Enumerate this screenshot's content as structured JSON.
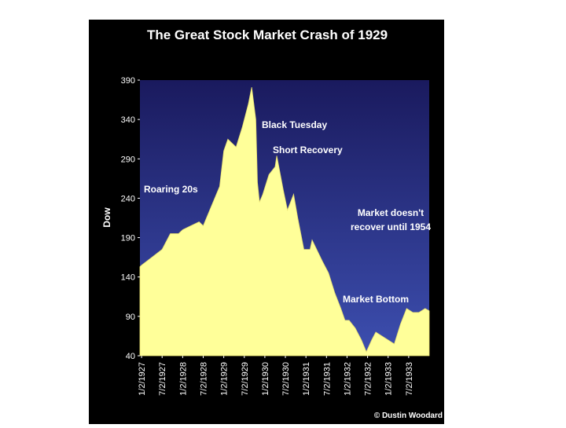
{
  "chart_data": {
    "type": "area",
    "title": "The Great Stock Market Crash of 1929",
    "y_label": "Dow",
    "annotations": {
      "black_tuesday": "Black Tuesday",
      "short_recovery": "Short Recovery",
      "roaring": "Roaring 20s",
      "recover_1": "Market doesn't",
      "recover_2": "recover until 1954",
      "bottom": "Market Bottom"
    },
    "credit": "© Dustin Woodard",
    "color": "#ffff99",
    "x": [
      1926.96,
      1927.0,
      1927.25,
      1927.5,
      1927.7,
      1927.9,
      1928.0,
      1928.2,
      1928.4,
      1928.5,
      1928.7,
      1928.9,
      1929.0,
      1929.1,
      1929.3,
      1929.45,
      1929.6,
      1929.68,
      1929.78,
      1929.82,
      1929.87,
      1929.95,
      1930.1,
      1930.25,
      1930.29,
      1930.45,
      1930.55,
      1930.7,
      1930.8,
      1930.95,
      1931.1,
      1931.15,
      1931.4,
      1931.55,
      1931.7,
      1931.85,
      1931.95,
      1932.05,
      1932.2,
      1932.35,
      1932.47,
      1932.6,
      1932.7,
      1932.85,
      1933.0,
      1933.15,
      1933.3,
      1933.45,
      1933.6,
      1933.75,
      1933.9,
      1934.0
    ],
    "values": [
      153,
      155,
      165,
      175,
      195,
      195,
      200,
      205,
      210,
      205,
      230,
      255,
      300,
      315,
      305,
      330,
      360,
      381,
      340,
      260,
      235,
      245,
      270,
      280,
      294,
      250,
      225,
      245,
      215,
      175,
      175,
      187,
      160,
      145,
      120,
      100,
      85,
      85,
      75,
      60,
      45,
      60,
      70,
      65,
      60,
      55,
      80,
      100,
      95,
      95,
      100,
      97
    ],
    "xlim": [
      1926.96,
      1934.0
    ],
    "ylim": [
      40,
      390
    ],
    "yticks": [
      40,
      90,
      140,
      190,
      240,
      290,
      340,
      390
    ],
    "xticks": [
      {
        "value": 1927.0,
        "label": "1/2/1927"
      },
      {
        "value": 1927.5,
        "label": "7/2/1927"
      },
      {
        "value": 1928.0,
        "label": "1/2/1928"
      },
      {
        "value": 1928.5,
        "label": "7/2/1928"
      },
      {
        "value": 1929.0,
        "label": "1/2/1929"
      },
      {
        "value": 1929.5,
        "label": "7/2/1929"
      },
      {
        "value": 1930.0,
        "label": "1/2/1930"
      },
      {
        "value": 1930.5,
        "label": "7/2/1930"
      },
      {
        "value": 1931.0,
        "label": "1/2/1931"
      },
      {
        "value": 1931.5,
        "label": "7/2/1931"
      },
      {
        "value": 1932.0,
        "label": "1/2/1932"
      },
      {
        "value": 1932.5,
        "label": "7/2/1932"
      },
      {
        "value": 1933.0,
        "label": "1/2/1933"
      },
      {
        "value": 1933.5,
        "label": "7/2/1933"
      }
    ]
  }
}
